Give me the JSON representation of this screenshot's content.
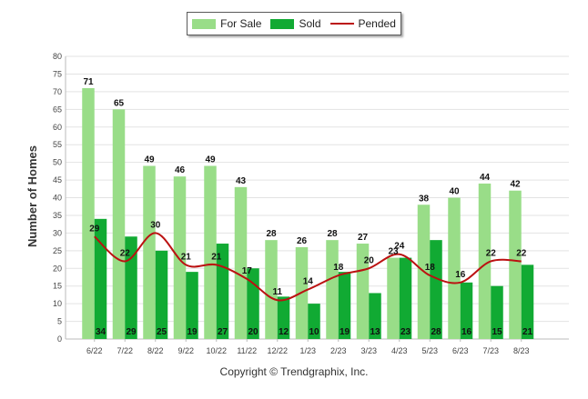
{
  "chart_data": {
    "type": "bar",
    "categories": [
      "6/22",
      "7/22",
      "8/22",
      "9/22",
      "10/22",
      "11/22",
      "12/22",
      "1/23",
      "2/23",
      "3/23",
      "4/23",
      "5/23",
      "6/23",
      "7/23",
      "8/23"
    ],
    "series": [
      {
        "name": "For Sale",
        "type": "bar",
        "color": "#99dd88",
        "values": [
          71,
          65,
          49,
          46,
          49,
          43,
          28,
          26,
          28,
          27,
          23,
          38,
          40,
          44,
          42
        ]
      },
      {
        "name": "Sold",
        "type": "bar",
        "color": "#11aa33",
        "values": [
          34,
          29,
          25,
          19,
          27,
          20,
          12,
          10,
          19,
          13,
          23,
          28,
          16,
          15,
          21
        ]
      },
      {
        "name": "Pended",
        "type": "line",
        "color": "#bb1111",
        "values": [
          29,
          22,
          30,
          21,
          21,
          17,
          11,
          14,
          18,
          20,
          24,
          18,
          16,
          22,
          22
        ]
      }
    ],
    "ylabel": "Number of Homes",
    "xlabel": "",
    "ylim": [
      0,
      80
    ],
    "yticks": [
      0,
      5,
      10,
      15,
      20,
      25,
      30,
      35,
      40,
      45,
      50,
      55,
      60,
      65,
      70,
      75,
      80
    ],
    "grid": true,
    "legend_position": "top-center"
  },
  "footer": {
    "copyright": "Copyright © Trendgraphix, Inc."
  }
}
